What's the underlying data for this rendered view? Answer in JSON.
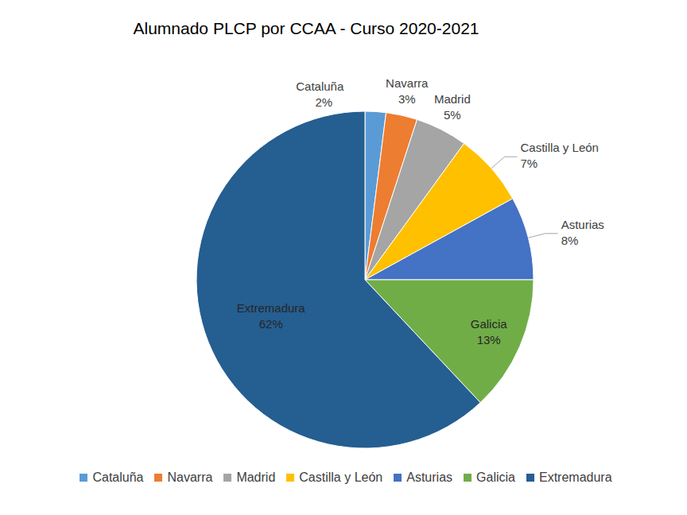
{
  "chart_data": {
    "type": "pie",
    "title": "Alumnado PLCP por CCAA - Curso 2020-2021",
    "categories": [
      "Cataluña",
      "Navarra",
      "Madrid",
      "Castilla y León",
      "Asturias",
      "Galicia",
      "Extremadura"
    ],
    "values": [
      2,
      3,
      5,
      7,
      8,
      13,
      62
    ],
    "value_labels": [
      "2%",
      "3%",
      "5%",
      "7%",
      "8%",
      "13%",
      "62%"
    ],
    "colors": [
      "#5b9bd5",
      "#ed7d31",
      "#a5a5a5",
      "#ffc000",
      "#4472c4",
      "#70ad47",
      "#255e91"
    ],
    "data_labels": true,
    "legend": "bottom"
  }
}
